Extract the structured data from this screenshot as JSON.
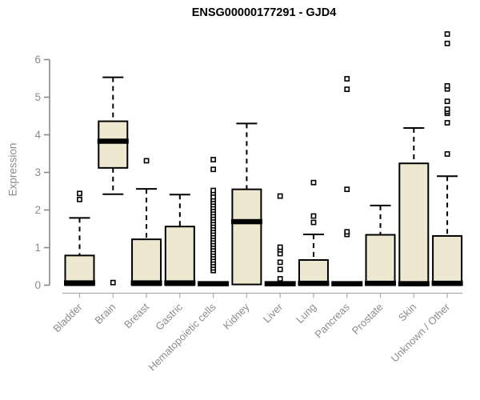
{
  "title": "ENSG00000177291 - GJD4",
  "y_axis": {
    "label": "Expression",
    "ticks": [
      0,
      1,
      2,
      3,
      4,
      5,
      6
    ]
  },
  "colors": {
    "box_fill": "#EDE8CF",
    "box_stroke": "#000000",
    "median": "#000000",
    "whisker": "#000000",
    "outlier_stroke": "#000000",
    "outlier_fill": "#FFFFFF",
    "y_axis_line": "#888888",
    "x_axis_line": "#AAAAAA",
    "tick_text": "#8C8C8C",
    "title_text": "#000000",
    "background": "#FFFFFF"
  },
  "chart_data": {
    "type": "boxplot",
    "title": "ENSG00000177291 - GJD4",
    "xlabel": "",
    "ylabel": "Expression",
    "ylim": [
      0,
      6.8
    ],
    "grid": false,
    "legend": "none",
    "categories": [
      "Bladder",
      "Brain",
      "Breast",
      "Gastric",
      "Hematopoietic cells",
      "Kidney",
      "Liver",
      "Lung",
      "Pancreas",
      "Prostate",
      "Skin",
      "Unknown / Other"
    ],
    "series": [
      {
        "name": "Bladder",
        "whisker_low": 0,
        "q1": 0,
        "median": 0.06,
        "q3": 0.79,
        "whisker_high": 1.79,
        "outliers": [
          2.28,
          2.44
        ]
      },
      {
        "name": "Brain",
        "whisker_low": 2.42,
        "q1": 3.12,
        "median": 3.83,
        "q3": 4.36,
        "whisker_high": 5.53,
        "outliers": [
          0.07
        ]
      },
      {
        "name": "Breast",
        "whisker_low": 0,
        "q1": 0,
        "median": 0.06,
        "q3": 1.22,
        "whisker_high": 2.56,
        "outliers": [
          3.31
        ]
      },
      {
        "name": "Gastric",
        "whisker_low": 0,
        "q1": 0,
        "median": 0.06,
        "q3": 1.56,
        "whisker_high": 2.41,
        "outliers": []
      },
      {
        "name": "Hematopoietic cells",
        "whisker_low": 0,
        "q1": 0,
        "median": 0.04,
        "q3": 0.07,
        "whisker_high": 0.07,
        "outliers": [
          0.39,
          0.46,
          0.53,
          0.6,
          0.67,
          0.74,
          0.81,
          0.88,
          0.95,
          1.02,
          1.09,
          1.16,
          1.23,
          1.3,
          1.37,
          1.44,
          1.51,
          1.58,
          1.65,
          1.72,
          1.79,
          1.86,
          1.93,
          2.0,
          2.07,
          2.14,
          2.21,
          2.28,
          2.35,
          2.45,
          2.52,
          3.08,
          3.34
        ]
      },
      {
        "name": "Kidney",
        "whisker_low": 0,
        "q1": 0.02,
        "median": 1.69,
        "q3": 2.55,
        "whisker_high": 4.3,
        "outliers": []
      },
      {
        "name": "Liver",
        "whisker_low": 0,
        "q1": 0,
        "median": 0.04,
        "q3": 0.07,
        "whisker_high": 0.07,
        "outliers": [
          0.17,
          0.42,
          0.61,
          0.84,
          0.94,
          1.01,
          2.37
        ]
      },
      {
        "name": "Lung",
        "whisker_low": 0,
        "q1": 0,
        "median": 0.05,
        "q3": 0.67,
        "whisker_high": 1.35,
        "outliers": [
          1.67,
          1.84,
          2.73
        ]
      },
      {
        "name": "Pancreas",
        "whisker_low": 0,
        "q1": 0,
        "median": 0.04,
        "q3": 0.07,
        "whisker_high": 0.07,
        "outliers": [
          1.35,
          1.42,
          2.55,
          5.21,
          5.49
        ]
      },
      {
        "name": "Prostate",
        "whisker_low": 0,
        "q1": 0,
        "median": 0.05,
        "q3": 1.34,
        "whisker_high": 2.12,
        "outliers": []
      },
      {
        "name": "Skin",
        "whisker_low": 0,
        "q1": 0,
        "median": 0.04,
        "q3": 3.24,
        "whisker_high": 4.18,
        "outliers": []
      },
      {
        "name": "Unknown / Other",
        "whisker_low": 0,
        "q1": 0,
        "median": 0.05,
        "q3": 1.31,
        "whisker_high": 2.9,
        "outliers": [
          3.49,
          4.32,
          4.57,
          4.62,
          4.68,
          4.89,
          5.22,
          5.3,
          6.43,
          6.68
        ]
      }
    ]
  }
}
